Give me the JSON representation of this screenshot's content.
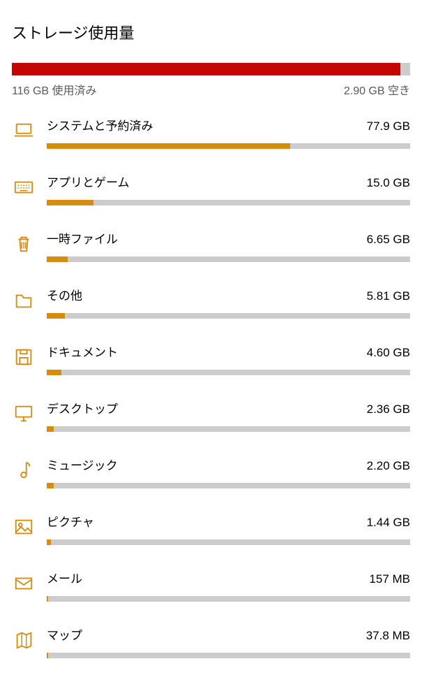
{
  "title": "ストレージ使用量",
  "overall": {
    "used_label": "116 GB 使用済み",
    "free_label": "2.90 GB 空き",
    "bar_fill_pct": 97.5,
    "bar_fill_color": "#c50500",
    "bar_track_color": "#cccccc"
  },
  "category_bar_color": "#d88c0e",
  "category_track_color": "#cccccc",
  "reference_gb": 77.9,
  "categories": [
    {
      "icon": "laptop",
      "label": "システムと予約済み",
      "size": "77.9 GB",
      "pct": 67.0
    },
    {
      "icon": "keyboard",
      "label": "アプリとゲーム",
      "size": "15.0 GB",
      "pct": 12.9
    },
    {
      "icon": "trash",
      "label": "一時ファイル",
      "size": "6.65 GB",
      "pct": 5.7
    },
    {
      "icon": "folder",
      "label": "その他",
      "size": "5.81 GB",
      "pct": 5.0
    },
    {
      "icon": "save",
      "label": "ドキュメント",
      "size": "4.60 GB",
      "pct": 4.0
    },
    {
      "icon": "monitor",
      "label": "デスクトップ",
      "size": "2.36 GB",
      "pct": 2.0
    },
    {
      "icon": "music",
      "label": "ミュージック",
      "size": "2.20 GB",
      "pct": 1.9
    },
    {
      "icon": "picture",
      "label": "ピクチャ",
      "size": "1.44 GB",
      "pct": 1.2
    },
    {
      "icon": "mail",
      "label": "メール",
      "size": "157 MB",
      "pct": 0.13
    },
    {
      "icon": "map",
      "label": "マップ",
      "size": "37.8 MB",
      "pct": 0.03
    }
  ],
  "colors": {
    "icon_stroke": "#d88c0e",
    "text": "#000000",
    "subtext": "#5a5a5a",
    "background": "#ffffff"
  }
}
